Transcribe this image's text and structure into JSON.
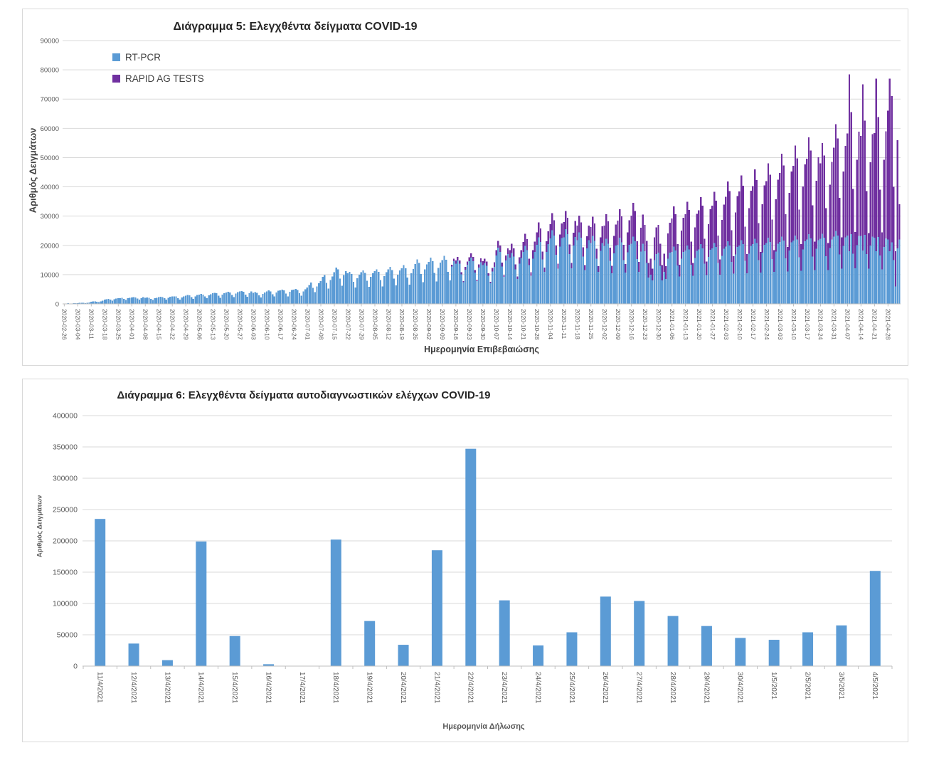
{
  "page": {
    "background": "#ffffff",
    "panel_border": "#d9d9d9",
    "gridline_color": "#d9d9d9",
    "axis_line_color": "#bfbfbf",
    "tick_label_color": "#595959"
  },
  "chart_data": [
    {
      "type": "bar",
      "subtype": "stacked",
      "title": "Διάγραμμα 5: Ελεγχθέντα δείγματα COVID-19",
      "xlabel": "Ημερομηνία Επιβεβαιώσης",
      "ylabel": "Αριθμός Δειγμάτων",
      "ylim": [
        0,
        90000
      ],
      "ytick_step": 10000,
      "ytick_labels": [
        "0",
        "10000",
        "20000",
        "30000",
        "40000",
        "50000",
        "60000",
        "70000",
        "80000",
        "90000"
      ],
      "grid": true,
      "legend_position": "top-left",
      "x_start_date": "2020-02-26",
      "x_frequency": "daily",
      "x_tick_every_days": 7,
      "x_tick_labels": [
        "2020-02-26",
        "2020-03-04",
        "2020-03-11",
        "2020-03-18",
        "2020-03-25",
        "2020-04-01",
        "2020-04-08",
        "2020-04-15",
        "2020-04-22",
        "2020-04-29",
        "2020-05-06",
        "2020-05-13",
        "2020-05-20",
        "2020-05-27",
        "2020-06-03",
        "2020-06-10",
        "2020-06-17",
        "2020-06-24",
        "2020-07-01",
        "2020-07-08",
        "2020-07-15",
        "2020-07-22",
        "2020-07-29",
        "2020-08-05",
        "2020-08-12",
        "2020-08-19",
        "2020-08-26",
        "2020-09-02",
        "2020-09-09",
        "2020-09-16",
        "2020-09-23",
        "2020-09-30",
        "2020-10-07",
        "2020-10-14",
        "2020-10-21",
        "2020-10-28",
        "2020-11-04",
        "2020-11-11",
        "2020-11-18",
        "2020-11-25",
        "2020-12-02",
        "2020-12-09",
        "2020-12-16",
        "2020-12-23",
        "2020-12-30",
        "2021-01-06",
        "2021-01-13",
        "2021-01-20",
        "2021-01-27",
        "2021-02-03",
        "2021-02-10",
        "2021-02-17",
        "2021-02-24",
        "2021-03-03",
        "2021-03-10",
        "2021-03-17",
        "2021-03-24",
        "2021-03-31",
        "2021-04-07",
        "2021-04-14",
        "2021-04-21",
        "2021-04-28"
      ],
      "series": [
        {
          "name": "RT-PCR",
          "color": "#5B9BD5",
          "values": [
            150,
            180,
            200,
            160,
            120,
            200,
            250,
            300,
            350,
            400,
            320,
            250,
            400,
            500,
            700,
            800,
            900,
            750,
            600,
            900,
            1100,
            1400,
            1600,
            1700,
            1400,
            1100,
            1600,
            1800,
            1900,
            2000,
            2100,
            1700,
            1300,
            1900,
            2100,
            2200,
            2300,
            2200,
            1800,
            1400,
            2000,
            2300,
            2100,
            2200,
            2100,
            1700,
            1300,
            1900,
            2100,
            2300,
            2400,
            2300,
            1900,
            1400,
            2100,
            2400,
            2500,
            2600,
            2500,
            2000,
            1500,
            2200,
            2500,
            2800,
            3000,
            2900,
            2300,
            1700,
            2600,
            3000,
            3200,
            3400,
            3200,
            2500,
            1900,
            2900,
            3300,
            3600,
            3800,
            3600,
            2800,
            2100,
            3200,
            3700,
            3900,
            4100,
            3900,
            3000,
            2300,
            3500,
            4000,
            4200,
            4400,
            4100,
            3200,
            2400,
            3700,
            4200,
            3800,
            4000,
            3800,
            2900,
            2200,
            3400,
            3900,
            4300,
            4600,
            4300,
            3300,
            2500,
            3900,
            4500,
            4600,
            4900,
            4600,
            3500,
            2600,
            4100,
            4800,
            4900,
            5100,
            4800,
            3700,
            2800,
            4300,
            5000,
            5600,
            6500,
            7300,
            5500,
            4000,
            6000,
            7000,
            7800,
            9200,
            9800,
            7200,
            5200,
            8200,
            9400,
            10800,
            12400,
            11800,
            8600,
            6200,
            9800,
            11200,
            10400,
            11000,
            10200,
            7600,
            5600,
            8800,
            10000,
            10800,
            11400,
            10600,
            7900,
            5800,
            9200,
            10400,
            11200,
            11800,
            11000,
            8200,
            6000,
            9500,
            10800,
            11800,
            12600,
            11600,
            8600,
            6300,
            10000,
            11400,
            12200,
            13200,
            12200,
            9000,
            6600,
            10400,
            11900,
            13600,
            15200,
            14000,
            10200,
            7400,
            11800,
            13500,
            14400,
            15800,
            14600,
            10600,
            7700,
            12300,
            14100,
            15000,
            16400,
            15100,
            11000,
            8000,
            12800,
            14600,
            13800,
            14800,
            13700,
            10100,
            7400,
            11700,
            13400,
            14600,
            15800,
            14600,
            10700,
            7800,
            12400,
            14200,
            13200,
            13900,
            13000,
            9600,
            7000,
            11100,
            12700,
            16500,
            19200,
            17800,
            12800,
            9200,
            14800,
            17000,
            15800,
            17400,
            16200,
            11800,
            8500,
            13700,
            15700,
            17800,
            19800,
            18400,
            13300,
            9600,
            15500,
            17800,
            20200,
            22800,
            21200,
            15200,
            10900,
            17800,
            20400,
            22400,
            25200,
            23400,
            16800,
            12000,
            19600,
            22500,
            22800,
            25600,
            23800,
            17000,
            12200,
            19900,
            22900,
            21800,
            24400,
            22600,
            16200,
            11600,
            19000,
            21800,
            20800,
            23200,
            21500,
            15400,
            11000,
            18100,
            20800,
            19800,
            22200,
            20600,
            14700,
            10500,
            17300,
            19900,
            20200,
            22600,
            21000,
            15000,
            10700,
            17600,
            20200,
            20600,
            23000,
            21400,
            15300,
            10900,
            17900,
            20600,
            18000,
            14000,
            9000,
            10000,
            8000,
            15000,
            17000,
            17500,
            13000,
            8000,
            11000,
            8500,
            15500,
            17500,
            17800,
            19600,
            18200,
            13100,
            9400,
            15400,
            17700,
            18200,
            20000,
            18600,
            13400,
            9600,
            15700,
            18100,
            18600,
            20400,
            19000,
            13700,
            9800,
            16000,
            18500,
            19000,
            20800,
            19400,
            14000,
            10000,
            16400,
            18900,
            19600,
            21400,
            20000,
            14400,
            10300,
            16900,
            19400,
            20000,
            21800,
            20400,
            14700,
            10500,
            17200,
            19800,
            20400,
            22200,
            20800,
            15000,
            10700,
            17500,
            20200,
            20800,
            22600,
            21200,
            15300,
            10900,
            17900,
            20600,
            21200,
            23000,
            21600,
            15600,
            11100,
            18200,
            21000,
            21600,
            23400,
            22000,
            15900,
            11300,
            18600,
            21400,
            22000,
            23800,
            22400,
            16200,
            11500,
            18900,
            21800,
            22200,
            24000,
            22600,
            16300,
            11600,
            19100,
            22000,
            23000,
            24900,
            23400,
            16900,
            12000,
            19800,
            22800,
            23400,
            18000,
            23800,
            17200,
            12200,
            20100,
            23200,
            23200,
            18200,
            23600,
            17000,
            12100,
            19900,
            23000,
            22600,
            18000,
            22900,
            16600,
            11800,
            19400,
            22400,
            22000,
            18000,
            21000,
            15000,
            6000,
            19000,
            22000
          ]
        },
        {
          "name": "RAPID AG TESTS",
          "color": "#7030A0",
          "values": [
            0,
            0,
            0,
            0,
            0,
            0,
            0,
            0,
            0,
            0,
            0,
            0,
            0,
            0,
            0,
            0,
            0,
            0,
            0,
            0,
            0,
            0,
            0,
            0,
            0,
            0,
            0,
            0,
            0,
            0,
            0,
            0,
            0,
            0,
            0,
            0,
            0,
            0,
            0,
            0,
            0,
            0,
            0,
            0,
            0,
            0,
            0,
            0,
            0,
            0,
            0,
            0,
            0,
            0,
            0,
            0,
            0,
            0,
            0,
            0,
            0,
            0,
            0,
            0,
            0,
            0,
            0,
            0,
            0,
            0,
            0,
            0,
            0,
            0,
            0,
            0,
            0,
            0,
            0,
            0,
            0,
            0,
            0,
            0,
            0,
            0,
            0,
            0,
            0,
            0,
            0,
            0,
            0,
            0,
            0,
            0,
            0,
            0,
            0,
            0,
            0,
            0,
            0,
            0,
            0,
            0,
            0,
            0,
            0,
            0,
            0,
            0,
            0,
            0,
            0,
            0,
            0,
            0,
            0,
            0,
            0,
            0,
            0,
            0,
            0,
            0,
            0,
            0,
            0,
            0,
            0,
            0,
            0,
            0,
            0,
            0,
            0,
            0,
            0,
            0,
            0,
            0,
            0,
            0,
            0,
            0,
            0,
            0,
            0,
            0,
            0,
            0,
            0,
            0,
            0,
            0,
            0,
            0,
            0,
            0,
            0,
            0,
            0,
            0,
            0,
            0,
            0,
            0,
            0,
            0,
            0,
            0,
            0,
            0,
            0,
            0,
            0,
            0,
            0,
            0,
            0,
            0,
            0,
            0,
            0,
            0,
            0,
            0,
            0,
            0,
            0,
            0,
            0,
            0,
            0,
            0,
            0,
            0,
            0,
            0,
            0,
            600,
            900,
            1000,
            1200,
            1100,
            700,
            400,
            900,
            1100,
            1300,
            1500,
            1400,
            900,
            500,
            1100,
            1400,
            1400,
            1600,
            1500,
            900,
            500,
            1200,
            1500,
            1900,
            2300,
            2100,
            1300,
            700,
            1700,
            2000,
            2600,
            3100,
            2800,
            1700,
            900,
            2200,
            2700,
            3400,
            4100,
            3700,
            2200,
            1200,
            2900,
            3500,
            4200,
            5100,
            4600,
            2700,
            1500,
            3600,
            4400,
            4800,
            5800,
            5200,
            3100,
            1700,
            4100,
            5000,
            5200,
            6200,
            5600,
            3300,
            1800,
            4400,
            5400,
            4900,
            5800,
            5300,
            3100,
            1700,
            4100,
            5000,
            5500,
            6600,
            6000,
            3500,
            1900,
            4700,
            5700,
            7000,
            8400,
            7600,
            4500,
            2500,
            5900,
            7200,
            8200,
            9800,
            8900,
            5200,
            2900,
            6900,
            8400,
            9600,
            11500,
            10400,
            6100,
            3400,
            8100,
            9900,
            9000,
            7500,
            5000,
            5500,
            4000,
            7800,
            9200,
            9500,
            7600,
            5200,
            6200,
            4400,
            8600,
            10200,
            11400,
            13700,
            12400,
            7300,
            4000,
            9600,
            11700,
            12400,
            14900,
            13500,
            7900,
            4400,
            10400,
            12700,
            13400,
            16100,
            14600,
            8500,
            4700,
            11300,
            13800,
            14600,
            17500,
            15900,
            9300,
            5200,
            12300,
            15000,
            17000,
            20400,
            18500,
            10800,
            6000,
            14300,
            17500,
            18400,
            22100,
            20000,
            11700,
            6500,
            15500,
            18900,
            19800,
            23800,
            21500,
            12600,
            7000,
            16600,
            20300,
            21200,
            25400,
            23000,
            13500,
            7500,
            17800,
            21800,
            23600,
            28300,
            25700,
            15000,
            8400,
            19800,
            24200,
            25600,
            30700,
            27800,
            16300,
            9100,
            21500,
            26300,
            27600,
            33100,
            30000,
            17500,
            9800,
            23200,
            28300,
            25800,
            31000,
            28100,
            16400,
            9200,
            21700,
            26500,
            30400,
            36500,
            33100,
            19300,
            10800,
            25500,
            31200,
            34800,
            60500,
            41800,
            22100,
            12400,
            29200,
            35700,
            34200,
            56800,
            39000,
            21500,
            12100,
            28500,
            35000,
            35800,
            59000,
            40900,
            22500,
            12700,
            29900,
            36600,
            44000,
            59000,
            50000,
            25000,
            12000,
            37000,
            12000
          ]
        }
      ]
    },
    {
      "type": "bar",
      "title": "Διάγραμμα 6: Ελεγχθέντα δείγματα αυτοδιαγνωστικών ελέγχων COVID-19",
      "xlabel": "Ημερομηνία Δήλωσης",
      "ylabel": "Αριθμός Δειγμάτων",
      "ylim": [
        0,
        400000
      ],
      "ytick_step": 50000,
      "ytick_labels": [
        "0",
        "50000",
        "100000",
        "150000",
        "200000",
        "250000",
        "300000",
        "350000",
        "400000"
      ],
      "grid": true,
      "bar_color": "#5B9BD5",
      "categories": [
        "11/4/2021",
        "12/4/2021",
        "13/4/2021",
        "14/4/2021",
        "15/4/2021",
        "16/4/2021",
        "17/4/2021",
        "18/4/2021",
        "19/4/2021",
        "20/4/2021",
        "21/4/2021",
        "22/4/2021",
        "23/4/2021",
        "24/4/2021",
        "25/4/2021",
        "26/4/2021",
        "27/4/2021",
        "28/4/2021",
        "29/4/2021",
        "30/4/2021",
        "1/5/2021",
        "2/5/2021",
        "3/5/2021",
        "4/5/2021"
      ],
      "values": [
        235000,
        36000,
        9500,
        199000,
        48000,
        3000,
        0,
        202000,
        72000,
        34000,
        185000,
        347000,
        105000,
        33000,
        54000,
        111000,
        104000,
        80000,
        64000,
        45000,
        42000,
        54000,
        65000,
        152000
      ]
    }
  ]
}
